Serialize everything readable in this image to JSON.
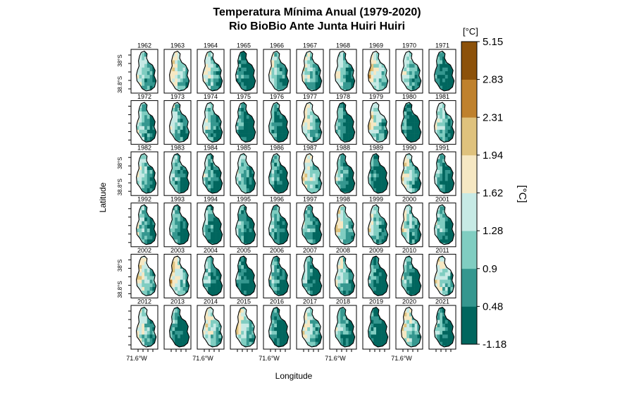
{
  "title_line1": "Temperatura Mínima Anual (1979-2020)",
  "title_line2": "Rio BioBio Ante Junta Huiri Huiri",
  "chart_data": {
    "type": "heatmap",
    "title": "Temperatura Mínima Anual (1979-2020)",
    "subtitle": "Rio BioBio Ante Junta Huiri Huiri",
    "xlabel": "Longitude",
    "ylabel": "Latitude",
    "panels": [
      "1962",
      "1963",
      "1964",
      "1965",
      "1966",
      "1967",
      "1968",
      "1969",
      "1970",
      "1971",
      "1972",
      "1973",
      "1974",
      "1975",
      "1976",
      "1977",
      "1978",
      "1979",
      "1980",
      "1981",
      "1982",
      "1983",
      "1984",
      "1985",
      "1986",
      "1987",
      "1988",
      "1989",
      "1990",
      "1991",
      "1992",
      "1993",
      "1994",
      "1995",
      "1996",
      "1997",
      "1998",
      "1999",
      "2000",
      "2001",
      "2002",
      "2003",
      "2004",
      "2005",
      "2006",
      "2007",
      "2008",
      "2009",
      "2010",
      "2011",
      "2012",
      "2013",
      "2014",
      "2015",
      "2016",
      "2017",
      "2018",
      "2019",
      "2020",
      "2021"
    ],
    "panel_grid": {
      "rows": 6,
      "cols": 10
    },
    "x_tick_label": "71.6°W",
    "y_tick_labels": [
      "38°S",
      "38.8°S"
    ],
    "colorbar": {
      "unit": "[°C]",
      "label": "[°C]",
      "breaks": [
        -1.18,
        0.48,
        0.9,
        1.28,
        1.62,
        1.94,
        2.31,
        2.83,
        5.15
      ],
      "break_labels": [
        "-1.18",
        "0.48",
        "0.9",
        "1.28",
        "1.62",
        "1.94",
        "2.31",
        "2.83",
        "5.15"
      ],
      "colors": [
        "#01665e",
        "#35978f",
        "#80cdc1",
        "#c7eae5",
        "#f6e8c3",
        "#dfc27d",
        "#bf812d",
        "#8c510a"
      ]
    },
    "legend_position": "right",
    "grid": false
  }
}
